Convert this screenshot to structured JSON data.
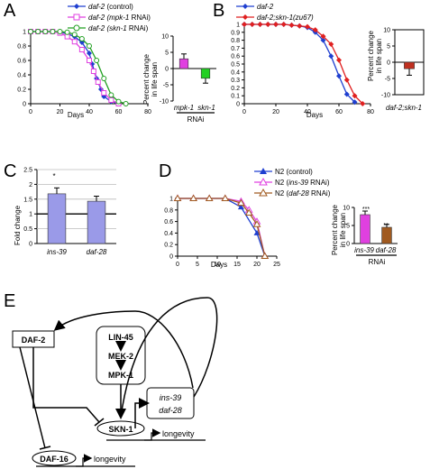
{
  "panels": {
    "A": {
      "letter": "A",
      "legend": [
        {
          "text_italic": "daf-2",
          "text_rest": " (control)",
          "color": "#1f3fd0"
        },
        {
          "text_italic": "daf-2 (mpk-1",
          "text_rest": " RNAi)",
          "color": "#e040e0"
        },
        {
          "text_italic": "daf-2 (skn-1",
          "text_rest": " RNAi)",
          "color": "#22a022"
        }
      ],
      "xlabel": "Days",
      "xticks": [
        "0",
        "20",
        "40",
        "60",
        "80"
      ],
      "yticks": [
        "0",
        "0.2",
        "0.4",
        "0.6",
        "0.8",
        "1"
      ],
      "inset": {
        "ylabel": "Percent change\nin life span",
        "yticks": [
          "10",
          "5",
          "0",
          "-5",
          "-10"
        ],
        "cat1": "mpk-1",
        "cat2": "skn-1",
        "group": "RNAi"
      }
    },
    "B": {
      "letter": "B",
      "legend": [
        {
          "text_italic": "daf-2",
          "text_rest": "",
          "color": "#1f3fd0"
        },
        {
          "text_italic": "daf-2;skn-1(zu67)",
          "text_rest": "",
          "color": "#e02020"
        }
      ],
      "xlabel": "Days",
      "xticks": [
        "0",
        "20",
        "40",
        "60",
        "80"
      ],
      "yticks": [
        "0",
        "0.1",
        "0.2",
        "0.3",
        "0.4",
        "0.5",
        "0.6",
        "0.7",
        "0.8",
        "0.9",
        "1"
      ],
      "inset": {
        "ylabel": "Percent change\nin life span",
        "yticks": [
          "10",
          "5",
          "0",
          "-5",
          "-10"
        ],
        "cat1": "daf-2;skn-1"
      }
    },
    "C": {
      "letter": "C",
      "ylabel": "Fold change",
      "yticks": [
        "0",
        "0.5",
        "1",
        "1.5",
        "2",
        "2.5"
      ],
      "star": "*"
    },
    "D": {
      "letter": "D",
      "legend": [
        {
          "text_italic": "",
          "text_rest": "N2 (control)",
          "color": "#1f3fd0"
        },
        {
          "text_prefix": "N2 (",
          "text_italic": "ins-39",
          "text_rest": " RNAi)",
          "color": "#e040e0"
        },
        {
          "text_prefix": "N2 (",
          "text_italic": "daf-28",
          "text_rest": " RNAi)",
          "color": "#a05a20"
        }
      ],
      "xlabel": "Days",
      "xticks": [
        "0",
        "5",
        "10",
        "15",
        "20",
        "25"
      ],
      "yticks": [
        "0",
        "0.2",
        "0.4",
        "0.6",
        "0.8",
        "1"
      ],
      "inset": {
        "ylabel": "Percent change\nin life span",
        "yticks": [
          "10",
          "5",
          "0"
        ],
        "star1": "***",
        "star2": "**",
        "cat1": "ins-39",
        "cat2": "daf-28",
        "group": "RNAi"
      }
    },
    "E": {
      "letter": "E",
      "nodes": {
        "daf2": "DAF-2",
        "lin45": "LIN-45",
        "mek2": "MEK-2",
        "mpk1": "MPK-1",
        "ins39": "ins-39",
        "daf28": "daf-28",
        "skn1": "SKN-1",
        "daf16": "DAF-16",
        "longevity1": "longevity",
        "longevity2": "longevity"
      }
    }
  },
  "chart_data": [
    {
      "type": "line",
      "panel": "A",
      "xlabel": "Days",
      "ylabel": "",
      "xlim": [
        0,
        80
      ],
      "ylim": [
        0,
        1
      ],
      "series": [
        {
          "name": "daf-2 (control)",
          "color": "#1f3fd0",
          "marker": "diamond",
          "x": [
            0,
            5,
            10,
            15,
            20,
            25,
            30,
            35,
            40,
            42,
            45,
            48,
            50,
            55,
            60
          ],
          "y": [
            1,
            1,
            1,
            1,
            0.99,
            0.97,
            0.93,
            0.85,
            0.7,
            0.55,
            0.35,
            0.2,
            0.1,
            0.03,
            0
          ]
        },
        {
          "name": "daf-2 (mpk-1 RNAi)",
          "color": "#e040e0",
          "marker": "square-open",
          "x": [
            0,
            5,
            10,
            15,
            20,
            25,
            30,
            35,
            40,
            43,
            46,
            50,
            55,
            60
          ],
          "y": [
            1,
            1,
            1,
            1,
            0.98,
            0.93,
            0.86,
            0.75,
            0.6,
            0.45,
            0.3,
            0.15,
            0.05,
            0
          ]
        },
        {
          "name": "daf-2 (skn-1 RNAi)",
          "color": "#22a022",
          "marker": "circle-open",
          "x": [
            0,
            5,
            10,
            15,
            20,
            25,
            30,
            35,
            40,
            45,
            50,
            55,
            60,
            65
          ],
          "y": [
            1,
            1,
            1,
            1,
            1,
            0.99,
            0.96,
            0.9,
            0.8,
            0.6,
            0.35,
            0.12,
            0.03,
            0
          ]
        }
      ]
    },
    {
      "type": "bar",
      "panel": "A-inset",
      "ylabel": "Percent change in life span",
      "ylim": [
        -10,
        10
      ],
      "categories": [
        "mpk-1",
        "skn-1"
      ],
      "values": [
        3,
        -3
      ],
      "errors": [
        1.5,
        1.5
      ],
      "colors": [
        "#e040e0",
        "#22d022"
      ]
    },
    {
      "type": "line",
      "panel": "B",
      "xlabel": "Days",
      "ylabel": "",
      "xlim": [
        0,
        80
      ],
      "ylim": [
        0,
        1
      ],
      "series": [
        {
          "name": "daf-2",
          "color": "#1f3fd0",
          "marker": "diamond",
          "x": [
            0,
            5,
            10,
            15,
            20,
            25,
            30,
            35,
            40,
            45,
            50,
            55,
            60,
            65,
            70
          ],
          "y": [
            1,
            1,
            1,
            1,
            1,
            1,
            0.99,
            0.98,
            0.96,
            0.9,
            0.8,
            0.6,
            0.35,
            0.12,
            0.02
          ]
        },
        {
          "name": "daf-2;skn-1(zu67)",
          "color": "#e02020",
          "marker": "diamond",
          "x": [
            0,
            5,
            10,
            15,
            20,
            25,
            30,
            35,
            40,
            45,
            50,
            55,
            60,
            65,
            70,
            75
          ],
          "y": [
            1,
            1,
            1,
            1,
            1,
            1,
            0.99,
            0.98,
            0.97,
            0.93,
            0.85,
            0.75,
            0.55,
            0.3,
            0.1,
            0
          ]
        }
      ]
    },
    {
      "type": "bar",
      "panel": "B-inset",
      "ylabel": "Percent change in life span",
      "ylim": [
        -10,
        10
      ],
      "categories": [
        "daf-2;skn-1"
      ],
      "values": [
        -2
      ],
      "errors": [
        2
      ],
      "colors": [
        "#c03020"
      ]
    },
    {
      "type": "bar",
      "panel": "C",
      "ylabel": "Fold change",
      "ylim": [
        0,
        2.5
      ],
      "categories": [
        "ins-39",
        "daf-28"
      ],
      "values": [
        1.68,
        1.43
      ],
      "errors": [
        0.2,
        0.17
      ],
      "colors": [
        "#9a9ae8",
        "#9a9ae8"
      ]
    },
    {
      "type": "line",
      "panel": "D",
      "xlabel": "Days",
      "ylabel": "",
      "xlim": [
        0,
        25
      ],
      "ylim": [
        0,
        1
      ],
      "series": [
        {
          "name": "N2 (control)",
          "color": "#1f3fd0",
          "marker": "triangle",
          "x": [
            0,
            4,
            8,
            12,
            16,
            20,
            22
          ],
          "y": [
            1,
            1,
            1,
            1,
            0.85,
            0.4,
            0
          ]
        },
        {
          "name": "N2 (ins-39 RNAi)",
          "color": "#e040e0",
          "marker": "triangle-open",
          "x": [
            0,
            4,
            8,
            12,
            16,
            18,
            20,
            22
          ],
          "y": [
            1,
            1,
            1,
            1,
            0.95,
            0.8,
            0.6,
            0
          ]
        },
        {
          "name": "N2 (daf-28 RNAi)",
          "color": "#a05a20",
          "marker": "triangle-open",
          "x": [
            0,
            4,
            8,
            12,
            16,
            18,
            20,
            22
          ],
          "y": [
            1,
            1,
            1,
            1,
            0.92,
            0.75,
            0.55,
            0
          ]
        }
      ]
    },
    {
      "type": "bar",
      "panel": "D-inset",
      "ylabel": "Percent change in life span",
      "ylim": [
        0,
        10
      ],
      "categories": [
        "ins-39",
        "daf-28"
      ],
      "values": [
        8,
        4.5
      ],
      "errors": [
        1,
        0.8
      ],
      "colors": [
        "#e040e0",
        "#a05a20"
      ]
    }
  ]
}
